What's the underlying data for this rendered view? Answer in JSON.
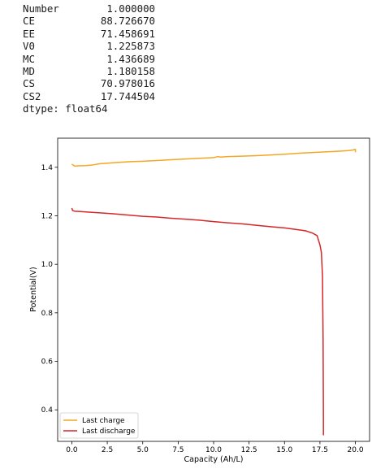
{
  "output": {
    "rows": [
      {
        "label": "Number",
        "value": "1.000000"
      },
      {
        "label": "CE",
        "value": "88.726670"
      },
      {
        "label": "EE",
        "value": "71.458691"
      },
      {
        "label": "V0",
        "value": "1.225873"
      },
      {
        "label": "MC",
        "value": "1.436689"
      },
      {
        "label": "MD",
        "value": "1.180158"
      },
      {
        "label": "CS",
        "value": "70.978016"
      },
      {
        "label": "CS2",
        "value": "17.744504"
      }
    ],
    "dtype": "dtype: float64"
  },
  "chart_data": {
    "type": "line",
    "xlabel": "Capacity (Ah/L)",
    "ylabel": "Potential(V)",
    "xlim": [
      -1.0,
      21.0
    ],
    "ylim": [
      0.27,
      1.52
    ],
    "xticks": [
      "0.0",
      "2.5",
      "5.0",
      "7.5",
      "10.0",
      "12.5",
      "15.0",
      "17.5",
      "20.0"
    ],
    "yticks": [
      "0.4",
      "0.6",
      "0.8",
      "1.0",
      "1.2",
      "1.4"
    ],
    "legend_position": "lower-left",
    "grid": false,
    "series": [
      {
        "name": "Last charge",
        "color": "#f5a623",
        "x": [
          0,
          0.2,
          0.5,
          1.0,
          1.5,
          2.0,
          3.0,
          4.0,
          5.0,
          6.0,
          7.0,
          8.0,
          9.0,
          10.0,
          10.3,
          10.5,
          11.0,
          12.0,
          13.0,
          14.0,
          15.0,
          16.0,
          17.0,
          18.0,
          19.0,
          19.5,
          19.8,
          20.0,
          20.0
        ],
        "y": [
          1.413,
          1.405,
          1.406,
          1.407,
          1.41,
          1.415,
          1.419,
          1.423,
          1.425,
          1.428,
          1.431,
          1.434,
          1.437,
          1.44,
          1.444,
          1.442,
          1.444,
          1.446,
          1.448,
          1.451,
          1.454,
          1.458,
          1.461,
          1.464,
          1.467,
          1.469,
          1.471,
          1.474,
          1.462
        ]
      },
      {
        "name": "Last discharge",
        "color": "#d62728",
        "x": [
          0,
          0.05,
          0.2,
          0.5,
          1.0,
          2.0,
          3.0,
          4.0,
          5.0,
          6.0,
          7.0,
          8.0,
          9.0,
          10.0,
          11.0,
          12.0,
          13.0,
          14.0,
          15.0,
          16.0,
          16.5,
          17.0,
          17.3,
          17.5,
          17.6,
          17.68,
          17.72,
          17.74,
          17.745,
          17.745
        ],
        "y": [
          1.232,
          1.222,
          1.219,
          1.218,
          1.216,
          1.212,
          1.208,
          1.203,
          1.198,
          1.195,
          1.19,
          1.186,
          1.182,
          1.176,
          1.171,
          1.167,
          1.161,
          1.155,
          1.15,
          1.142,
          1.138,
          1.128,
          1.118,
          1.08,
          1.05,
          0.95,
          0.7,
          0.45,
          0.35,
          0.295
        ]
      }
    ]
  }
}
